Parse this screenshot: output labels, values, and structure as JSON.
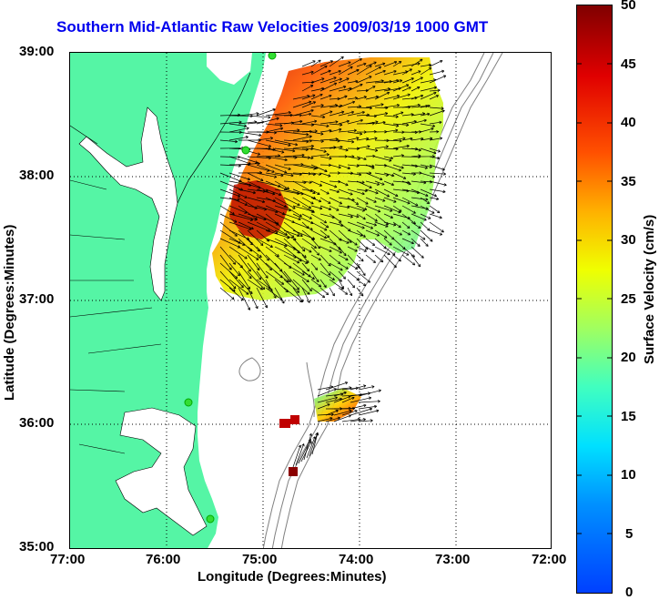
{
  "title": "Southern Mid-Atlantic Raw Velocities 2009/03/19 1000 GMT",
  "x_axis": {
    "label": "Longitude (Degrees:Minutes)",
    "ticks": [
      "77:00",
      "76:00",
      "75:00",
      "74:00",
      "73:00",
      "72:00"
    ]
  },
  "y_axis": {
    "label": "Latitude (Degrees:Minutes)",
    "ticks": [
      "39:00",
      "38:00",
      "37:00",
      "36:00",
      "35:00"
    ]
  },
  "colorbar": {
    "label": "Surface Velocity (cm/s)",
    "ticks": [
      "50",
      "45",
      "40",
      "35",
      "30",
      "25",
      "20",
      "15",
      "10",
      "5",
      "0"
    ],
    "range": [
      0,
      50
    ]
  },
  "colors": {
    "land": "#55f5a5",
    "title": "#0000ee",
    "station": "#33dd33"
  },
  "map": {
    "lon_range": [
      -77,
      -72
    ],
    "lat_range": [
      35,
      39
    ],
    "grid": "dotted"
  }
}
